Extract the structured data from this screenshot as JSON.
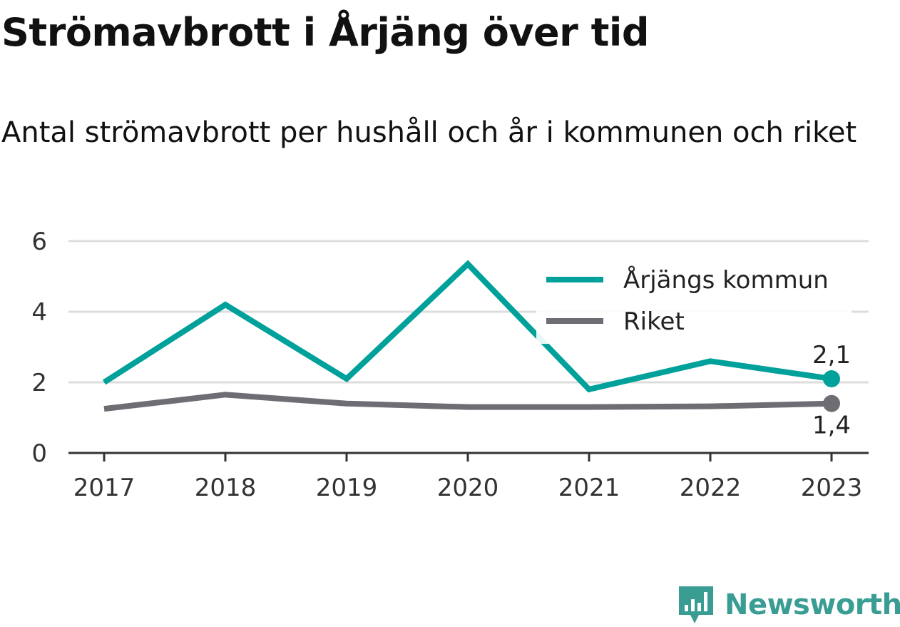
{
  "chart_data": {
    "type": "line",
    "title": "Strömavbrott i Årjäng över tid",
    "subtitle": "Antal strömavbrott per hushåll och år i kommunen och riket",
    "xlabel": "",
    "ylabel": "",
    "categories": [
      "2017",
      "2018",
      "2019",
      "2020",
      "2021",
      "2022",
      "2023"
    ],
    "yticks": [
      "0",
      "2",
      "4",
      "6"
    ],
    "ylim": [
      0,
      6
    ],
    "grid": true,
    "legend_position": "top-right",
    "series": [
      {
        "name": "Årjängs kommun",
        "color": "#00a19a",
        "values": [
          2.0,
          4.2,
          2.1,
          5.35,
          1.8,
          2.6,
          2.1
        ],
        "end_label": "2,1"
      },
      {
        "name": "Riket",
        "color": "#6e6d74",
        "values": [
          1.25,
          1.65,
          1.4,
          1.3,
          1.3,
          1.32,
          1.4
        ],
        "end_label": "1,4"
      }
    ]
  },
  "branding": {
    "name": "Newsworthy",
    "logo_icon": "newsworthy-logo-icon",
    "color": "#3a9d94"
  }
}
